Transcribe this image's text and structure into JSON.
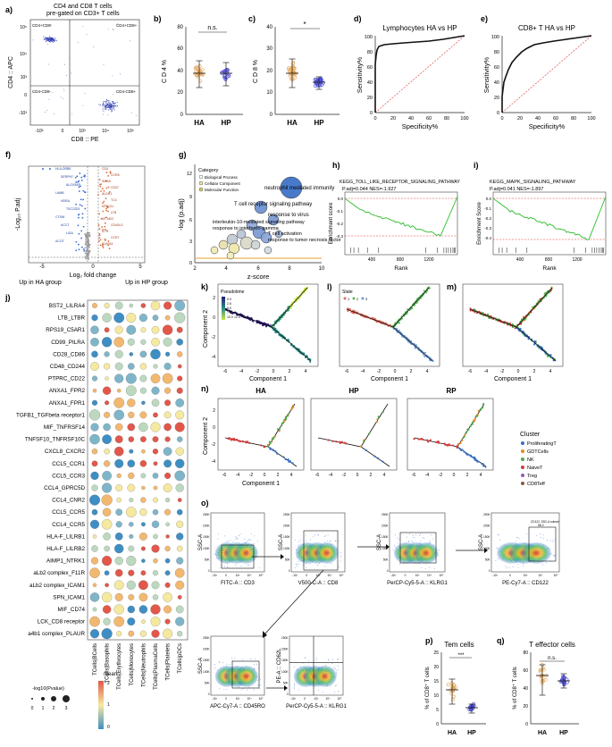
{
  "panel_a": {
    "letter": "a)",
    "title_line1": "CD4 and CD8 T cells",
    "title_line2": "pre-gated on CD3+ T cells",
    "y_axis": "CD4 :: APC",
    "x_axis": "CD8 :: PE",
    "quadrants": [
      "CD4+CD8-",
      "CD4+CD8+",
      "CD4-CD8-",
      "CD4-CD8+"
    ],
    "y_ticks": [
      "10⁵",
      "10⁴",
      "10³",
      "0",
      "-10³"
    ],
    "x_ticks": [
      "-10³",
      "0",
      "10³",
      "10⁴",
      "10⁵"
    ]
  },
  "panel_b": {
    "letter": "b)",
    "ylabel": "C D 4 %",
    "sig": "n.s.",
    "y_ticks": [
      "0",
      "20",
      "40",
      "60",
      "80"
    ],
    "groups": [
      "HA",
      "HP"
    ]
  },
  "panel_c": {
    "letter": "c)",
    "ylabel": "C D 8 %",
    "sig": "*",
    "y_ticks": [
      "0",
      "10",
      "20",
      "30",
      "40"
    ],
    "groups": [
      "HA",
      "HP"
    ]
  },
  "panel_d": {
    "letter": "d)",
    "title": "Lymphocytes HA vs HP",
    "xlabel": "Specificity%",
    "ylabel": "Sensitivity%",
    "ticks": [
      "0",
      "20",
      "40",
      "60",
      "80",
      "100"
    ]
  },
  "panel_e": {
    "letter": "e)",
    "title": "CD8+ T HA vs HP",
    "xlabel": "Specificity%",
    "ylabel": "Sensitivity%",
    "ticks": [
      "0",
      "20",
      "40",
      "60",
      "80",
      "100"
    ]
  },
  "panel_f": {
    "letter": "f)",
    "ylabel": "-Log₁₀ P.adj",
    "xlabel": "Log₂ fold change",
    "x_ticks": [
      "-5",
      "0",
      "5"
    ],
    "left_note": "Up in HA group",
    "right_note": "Up in HP group",
    "genes_left": [
      "HLA-DRB5",
      "SERPH7",
      "ALOX5AP",
      "LAMB",
      "HDRA",
      "TSC22D3",
      "CTSW",
      "ACCT",
      "LIDA",
      "ACOT"
    ],
    "genes_right": [
      "CD4",
      "CCR8",
      "SMAD",
      "CD37",
      "ALDH1",
      "TC4",
      "MT-CO1",
      "LTB",
      "MT-ND2",
      "CD40LG",
      "IL7R",
      "CCR7",
      "S100A4"
    ]
  },
  "panel_g": {
    "letter": "g)",
    "ylabel": "-log (p.adj)",
    "xlabel": "z-score",
    "x_ticks": [
      "2",
      "4",
      "6",
      "8",
      "10"
    ],
    "y_ticks": [
      "0",
      "3",
      "6",
      "9",
      "12"
    ],
    "legend_title": "Category",
    "legend_items": [
      "Biological Process",
      "Cellular Component",
      "Molecular Function"
    ],
    "labels": [
      "neutrophil mediated immunity",
      "T cell receptor signaling pathway",
      "response to virus",
      "interleukin-10-mediated signaling pathway",
      "response to interferon-gamma",
      "T cell activation",
      "response to tumor necrosis factor"
    ]
  },
  "panel_h": {
    "letter": "h)",
    "title": "KEGG_TOLL_LIKE_RECEPTOR_SIGNALING_PATHWAY",
    "stats": "P.adj=0.044   NES=-1.927",
    "ylabel": "Enrichment score",
    "xlabel": "Rank",
    "x_ticks": [
      "400",
      "800",
      "1200"
    ],
    "y_ticks": [
      "0.0",
      "-0.1",
      "-0.2",
      "-0.3"
    ]
  },
  "panel_i": {
    "letter": "i)",
    "title": "KEGG_MAPK_SIGNALING_PATHWAY",
    "stats": "P.adj=0.041   NES=-1.897",
    "ylabel": "Enrichment Score",
    "xlabel": "Rank",
    "x_ticks": [
      "400",
      "800",
      "1200"
    ],
    "y_ticks": [
      "0.0",
      "-0.1",
      "-0.2",
      "-0.3",
      "-0.4"
    ]
  },
  "panel_j": {
    "letter": "j)",
    "rows": [
      "BST2_LILRA4",
      "LTB_LTBR",
      "RPS19_C5AR1",
      "CD99_PILRA",
      "CD28_CD86",
      "CD48_CD244",
      "PTPRC_CD22",
      "ANXA1_FPR2",
      "ANXA1_FPR1",
      "TGFB1_TGFbeta receptor1",
      "MIF_TNFRSF14",
      "TNFSF10_TNFRSF10C",
      "CXCL8_CXCR2",
      "CCL5_CCR1",
      "CCL5_CCR3",
      "CCL4_GPRC5D",
      "CCL4_CNR2",
      "CCL5_CCR5",
      "CCL4_CCR5",
      "HLA-F_LILRB1",
      "HLA-F_LILRB2",
      "AIMP1_NTRK1",
      "aLb2 complex_F11R",
      "aLb2 complex_ICAM1",
      "SPN_ICAM1",
      "MIF_CD74",
      "LCK_CD8 receptor",
      "a4b1 complex_PLAUR"
    ],
    "columns": [
      "TCells|BCells",
      "TCells|Basophils",
      "TCells|Erythrocytes",
      "TCells|Monocytes",
      "TCells|Neutrophils",
      "TCells|PlasmaCells",
      "TCells|Platelets",
      "TCells|pDCs"
    ],
    "size_legend_title": "-log10(Pvalue)",
    "size_legend_values": [
      "0",
      "1",
      "2",
      "3"
    ],
    "color_legend_title": "mean",
    "color_legend_values": [
      "2",
      "1",
      "0"
    ]
  },
  "panel_k": {
    "letter": "k)",
    "legend_title": "Pseudotime",
    "legend_values": [
      "0.0",
      "2.5",
      "5.0",
      "7.5",
      "10.0",
      "12.5"
    ],
    "xlabel": "Component 1",
    "ylabel": "Component 2",
    "x_ticks": [
      "-6",
      "-4",
      "-2",
      "0",
      "2",
      "4"
    ],
    "y_ticks": [
      "2",
      "0",
      "-2",
      "-4"
    ]
  },
  "panel_l": {
    "letter": "l)",
    "legend_title": "State",
    "legend_values": [
      "1",
      "2",
      "3"
    ],
    "xlabel": "Component 1",
    "x_ticks": [
      "-6",
      "-4",
      "-2",
      "0",
      "2",
      "4"
    ]
  },
  "panel_m": {
    "letter": "m)",
    "xlabel": "Component 1",
    "x_ticks": [
      "-6",
      "-4",
      "-2",
      "0",
      "2",
      "4"
    ]
  },
  "panel_n": {
    "letter": "n)",
    "groups": [
      "HA",
      "HP",
      "RP"
    ],
    "xlabel": "Component 1",
    "ylabel": "Component 2",
    "x_ticks": [
      "-6",
      "-4",
      "-2",
      "0",
      "2",
      "4"
    ],
    "y_ticks": [
      "2",
      "0",
      "-2",
      "-4"
    ],
    "legend_title": "Cluster",
    "clusters": [
      {
        "name": "ProliferatingT",
        "color": "#3a6fc4"
      },
      {
        "name": "GDTCells",
        "color": "#e08a2c"
      },
      {
        "name": "NK",
        "color": "#4aa84a"
      },
      {
        "name": "NaiveT",
        "color": "#d23b3b"
      },
      {
        "name": "Treg",
        "color": "#8e5bb8"
      },
      {
        "name": "CD8Teff",
        "color": "#8b5a3c"
      }
    ]
  },
  "panel_o": {
    "letter": "o)",
    "plots": [
      {
        "ylabel": "SSC-A",
        "xlabel": "FITC-A :: CD3"
      },
      {
        "ylabel": "SSC-A",
        "xlabel": "V500-C-A :: CD8"
      },
      {
        "ylabel": "SSC-A",
        "xlabel": "PerCP-Cy5-5-A :: KLRG1"
      },
      {
        "ylabel": "SSC-A",
        "xlabel": "PE-Cy7-A :: CD122",
        "gate_label": "CD122, SSC-A subset",
        "gate_value": "58.2"
      },
      {
        "ylabel": "SSC-A",
        "xlabel": "APC-Cy7-A :: CD45RO"
      },
      {
        "ylabel": "PE-A :: CD62L",
        "xlabel": "PerCP-Cy5-5-A :: KLRG1"
      }
    ],
    "y_ticks": [
      "250K",
      "200K",
      "150K",
      "100K",
      "50K",
      "0"
    ],
    "x_ticks": [
      "-10³",
      "0",
      "10³",
      "10⁴",
      "10⁵"
    ]
  },
  "panel_p": {
    "letter": "p)",
    "title": "Tem cells",
    "sig": "***",
    "ylabel": "% of CD8⁺ T cells",
    "y_ticks": [
      "0",
      "5",
      "10",
      "15",
      "20",
      "25"
    ],
    "groups": [
      "HA",
      "HP"
    ]
  },
  "panel_q": {
    "letter": "q)",
    "title": "T effector cells",
    "sig": "n.s.",
    "ylabel": "% of CD8⁺ T cells",
    "y_ticks": [
      "0",
      "20",
      "40",
      "60",
      "80"
    ],
    "groups": [
      "HA",
      "HP"
    ]
  }
}
